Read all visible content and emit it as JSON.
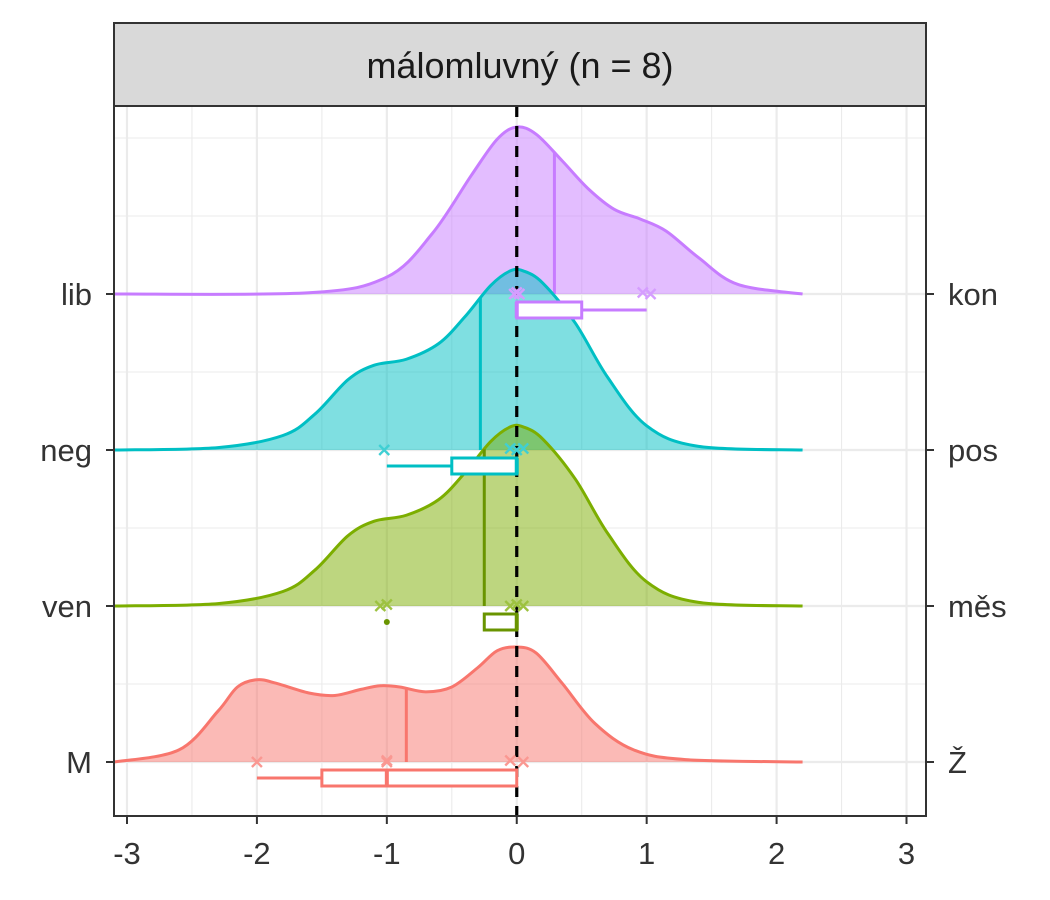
{
  "chart_data": {
    "type": "ridgeline",
    "facet_title": "málomluvný (n = 8)",
    "xlim": [
      -3.1,
      3.15
    ],
    "x_ticks": [
      -3,
      -2,
      -1,
      0,
      1,
      2,
      3
    ],
    "x_tick_labels": [
      "-3",
      "-2",
      "-1",
      "0",
      "1",
      "2",
      "3"
    ],
    "reference_line_x": 0,
    "density_range": [
      -3.1,
      2.2
    ],
    "rows": [
      {
        "left_label": "M",
        "right_label": "Ž",
        "color": "#F8766D",
        "density_x": [
          -3.1,
          -2.6,
          -2.3,
          -2.15,
          -2.0,
          -1.85,
          -1.6,
          -1.4,
          -1.2,
          -1.05,
          -0.9,
          -0.7,
          -0.5,
          -0.3,
          -0.15,
          0.0,
          0.15,
          0.35,
          0.6,
          0.9,
          1.3,
          2.2
        ],
        "density_y": [
          0.0,
          0.1,
          0.42,
          0.62,
          0.68,
          0.65,
          0.57,
          0.55,
          0.6,
          0.63,
          0.62,
          0.58,
          0.62,
          0.78,
          0.92,
          0.95,
          0.9,
          0.65,
          0.32,
          0.1,
          0.02,
          0.0
        ],
        "mean": -0.85,
        "box": {
          "whisker_low": -2.0,
          "q1": -1.5,
          "median": -1.0,
          "q3": 0.0,
          "whisker_high": 0.0
        },
        "points": [
          -2.0,
          -1.0,
          -1.0,
          -0.05,
          0.05
        ],
        "outliers": []
      },
      {
        "left_label": "ven",
        "right_label": "měs",
        "color": "#7CAE00",
        "density_x": [
          -3.1,
          -2.3,
          -1.8,
          -1.55,
          -1.3,
          -1.1,
          -0.85,
          -0.6,
          -0.4,
          -0.2,
          -0.05,
          0.05,
          0.2,
          0.45,
          0.7,
          1.0,
          1.4,
          2.2
        ],
        "density_y": [
          0.0,
          0.02,
          0.12,
          0.3,
          0.58,
          0.7,
          0.75,
          0.88,
          1.1,
          1.36,
          1.48,
          1.48,
          1.38,
          1.05,
          0.6,
          0.2,
          0.03,
          0.0
        ],
        "mean": -0.25,
        "box": {
          "whisker_low": -0.25,
          "q1": -0.25,
          "median": 0.0,
          "q3": 0.0,
          "whisker_high": 0.0
        },
        "points": [
          -1.05,
          -1.0,
          -0.05,
          0.0,
          0.05
        ],
        "outliers": [
          -1.0
        ]
      },
      {
        "left_label": "neg",
        "right_label": "pos",
        "color": "#00BFC4",
        "density_x": [
          -3.1,
          -2.3,
          -1.8,
          -1.55,
          -1.3,
          -1.1,
          -0.85,
          -0.6,
          -0.4,
          -0.2,
          -0.05,
          0.05,
          0.2,
          0.45,
          0.7,
          1.0,
          1.4,
          2.2
        ],
        "density_y": [
          0.0,
          0.02,
          0.12,
          0.3,
          0.58,
          0.7,
          0.75,
          0.88,
          1.1,
          1.36,
          1.48,
          1.48,
          1.38,
          1.05,
          0.6,
          0.2,
          0.03,
          0.0
        ],
        "mean": -0.28,
        "box": {
          "whisker_low": -1.0,
          "q1": -0.5,
          "median": 0.0,
          "q3": 0.0,
          "whisker_high": 0.0
        },
        "points": [
          -1.02,
          -0.05,
          0.0,
          0.05
        ],
        "outliers": []
      },
      {
        "left_label": "lib",
        "right_label": "kon",
        "color": "#C77CFF",
        "density_x": [
          -3.1,
          -1.6,
          -1.0,
          -0.65,
          -0.35,
          -0.15,
          0.0,
          0.15,
          0.35,
          0.55,
          0.75,
          0.95,
          1.15,
          1.4,
          1.7,
          2.2
        ],
        "density_y": [
          0.0,
          0.01,
          0.14,
          0.5,
          0.98,
          1.28,
          1.38,
          1.32,
          1.1,
          0.87,
          0.7,
          0.62,
          0.52,
          0.3,
          0.08,
          0.0
        ],
        "mean": 0.29,
        "box": {
          "whisker_low": 0.0,
          "q1": 0.0,
          "median": 0.0,
          "q3": 0.5,
          "whisker_high": 1.0
        },
        "points": [
          -0.02,
          0.0,
          0.02,
          0.97,
          1.03
        ],
        "outliers": []
      }
    ]
  }
}
